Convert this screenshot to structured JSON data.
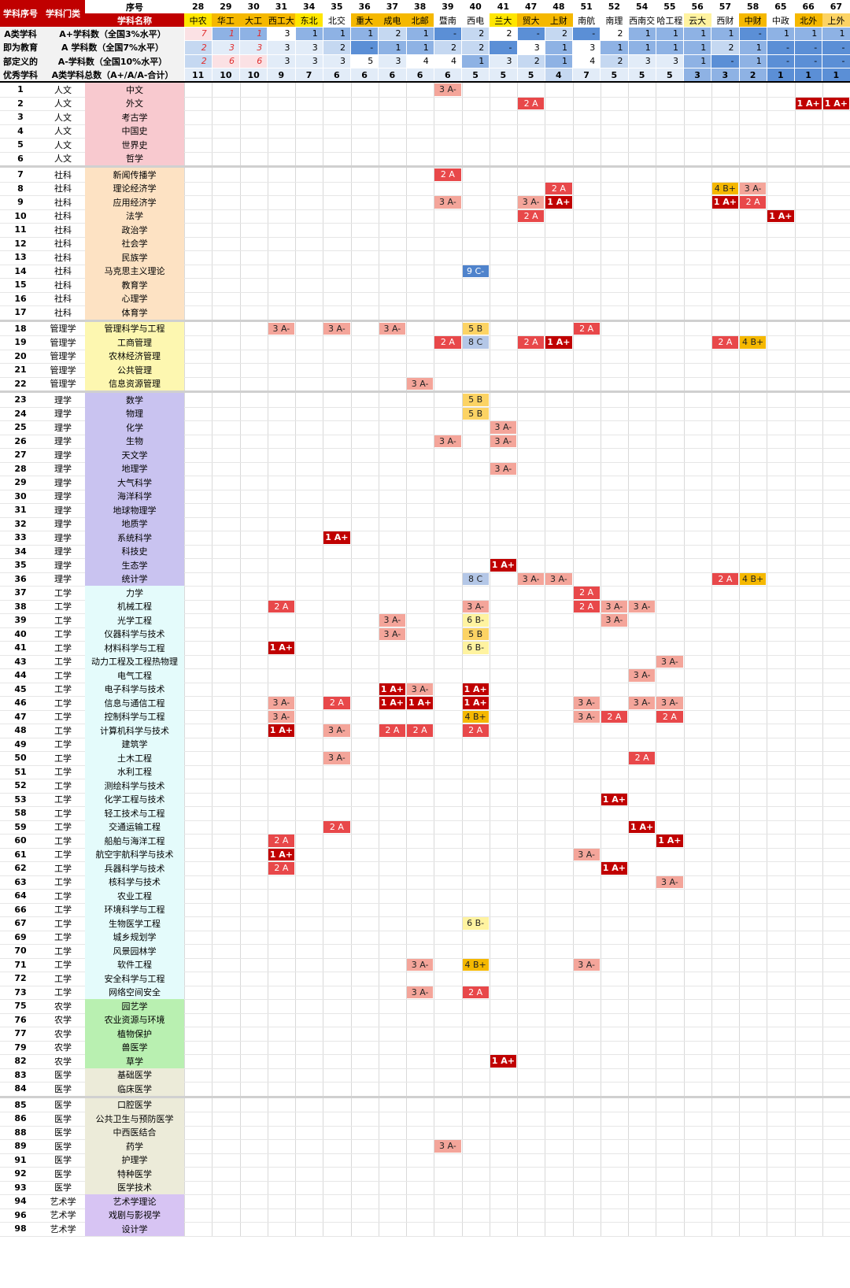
{
  "header": {
    "corner_label_1": "学科序号",
    "corner_label_2": "学科门类",
    "seq_label": "序号",
    "name_label": "学科名称",
    "summary_rows": [
      {
        "left": "A类学科",
        "label": "A+学科数（全国3%水平）"
      },
      {
        "left": "即为教育",
        "label": "A 学科数（全国7%水平）"
      },
      {
        "left": "部定义的",
        "label": "A-学科数（全国10%水平）"
      },
      {
        "left": "优秀学科",
        "label": "A类学科总数（A+/A/A-合计）"
      }
    ]
  },
  "universities": [
    {
      "seq": "28",
      "name": "中农",
      "color": "#ffe600",
      "ap": "7",
      "a": "2",
      "am": "2",
      "total": "11",
      "ap_style": "red",
      "a_style": "red",
      "am_style": "red",
      "ap_bg": "#fbe1e4",
      "a_bg": "#c5d8f1",
      "am_bg": "#c5d8f1",
      "total_bg": "#e2ecf8"
    },
    {
      "seq": "29",
      "name": "华工",
      "color": "#f5b800",
      "ap": "1",
      "a": "3",
      "am": "6",
      "total": "10",
      "ap_style": "red",
      "a_style": "red",
      "am_style": "red",
      "ap_bg": "#8eb2e4",
      "a_bg": "#e2ecf8",
      "am_bg": "#fbe1e4",
      "total_bg": "#e2ecf8"
    },
    {
      "seq": "30",
      "name": "大工",
      "color": "#f5b800",
      "ap": "1",
      "a": "3",
      "am": "6",
      "total": "10",
      "ap_style": "red",
      "a_style": "red",
      "am_style": "red",
      "ap_bg": "#8eb2e4",
      "a_bg": "#e2ecf8",
      "am_bg": "#fbe1e4",
      "total_bg": "#e2ecf8"
    },
    {
      "seq": "31",
      "name": "西工大",
      "color": "#f5b800",
      "ap": "3",
      "a": "3",
      "am": "3",
      "total": "9",
      "ap_style": "",
      "a_style": "",
      "am_style": "",
      "ap_bg": "#ffffff",
      "a_bg": "#e2ecf8",
      "am_bg": "#e2ecf8",
      "total_bg": "#e2ecf8"
    },
    {
      "seq": "34",
      "name": "东北",
      "color": "#ffe600",
      "ap": "1",
      "a": "3",
      "am": "3",
      "total": "7",
      "ap_style": "",
      "a_style": "",
      "am_style": "",
      "ap_bg": "#8eb2e4",
      "a_bg": "#e2ecf8",
      "am_bg": "#e2ecf8",
      "total_bg": "#e2ecf8"
    },
    {
      "seq": "35",
      "name": "北交",
      "color": "#ffffff",
      "ap": "1",
      "a": "2",
      "am": "3",
      "total": "6",
      "ap_style": "",
      "a_style": "",
      "am_style": "",
      "ap_bg": "#8eb2e4",
      "a_bg": "#c5d8f1",
      "am_bg": "#e2ecf8",
      "total_bg": "#e2ecf8"
    },
    {
      "seq": "36",
      "name": "重大",
      "color": "#f5b800",
      "ap": "1",
      "a": "-",
      "am": "5",
      "total": "6",
      "ap_style": "",
      "a_style": "",
      "am_style": "",
      "ap_bg": "#8eb2e4",
      "a_bg": "#5b8fd6",
      "am_bg": "#ffffff",
      "total_bg": "#e2ecf8"
    },
    {
      "seq": "37",
      "name": "成电",
      "color": "#f5b800",
      "ap": "2",
      "a": "1",
      "am": "3",
      "total": "6",
      "ap_style": "",
      "a_style": "",
      "am_style": "",
      "ap_bg": "#c5d8f1",
      "a_bg": "#8eb2e4",
      "am_bg": "#e2ecf8",
      "total_bg": "#e2ecf8"
    },
    {
      "seq": "38",
      "name": "北邮",
      "color": "#f5b800",
      "ap": "1",
      "a": "1",
      "am": "4",
      "total": "6",
      "ap_style": "",
      "a_style": "",
      "am_style": "",
      "ap_bg": "#8eb2e4",
      "a_bg": "#8eb2e4",
      "am_bg": "#ffffff",
      "total_bg": "#e2ecf8"
    },
    {
      "seq": "39",
      "name": "暨南",
      "color": "#ffffff",
      "ap": "-",
      "a": "2",
      "am": "4",
      "total": "6",
      "ap_style": "",
      "a_style": "",
      "am_style": "",
      "ap_bg": "#5b8fd6",
      "a_bg": "#c5d8f1",
      "am_bg": "#ffffff",
      "total_bg": "#e2ecf8"
    },
    {
      "seq": "40",
      "name": "西电",
      "color": "#ffffff",
      "ap": "2",
      "a": "2",
      "am": "1",
      "total": "5",
      "ap_style": "",
      "a_style": "",
      "am_style": "",
      "ap_bg": "#c5d8f1",
      "a_bg": "#c5d8f1",
      "am_bg": "#8eb2e4",
      "total_bg": "#e2ecf8"
    },
    {
      "seq": "41",
      "name": "兰大",
      "color": "#ffe600",
      "ap": "2",
      "a": "-",
      "am": "3",
      "total": "5",
      "ap_style": "",
      "a_style": "",
      "am_style": "",
      "ap_bg": "#ffffff",
      "a_bg": "#5b8fd6",
      "am_bg": "#e2ecf8",
      "total_bg": "#e2ecf8"
    },
    {
      "seq": "47",
      "name": "贸大",
      "color": "#f5b800",
      "ap": "-",
      "a": "3",
      "am": "2",
      "total": "5",
      "ap_style": "",
      "a_style": "",
      "am_style": "",
      "ap_bg": "#5b8fd6",
      "a_bg": "#ffffff",
      "am_bg": "#c5d8f1",
      "total_bg": "#e2ecf8"
    },
    {
      "seq": "48",
      "name": "上财",
      "color": "#f5b800",
      "ap": "2",
      "a": "1",
      "am": "1",
      "total": "4",
      "ap_style": "",
      "a_style": "",
      "am_style": "",
      "ap_bg": "#c5d8f1",
      "a_bg": "#8eb2e4",
      "am_bg": "#8eb2e4",
      "total_bg": "#c5d8f1"
    },
    {
      "seq": "51",
      "name": "南航",
      "color": "#ffffff",
      "ap": "-",
      "a": "3",
      "am": "4",
      "total": "7",
      "ap_style": "",
      "a_style": "",
      "am_style": "",
      "ap_bg": "#5b8fd6",
      "a_bg": "#ffffff",
      "am_bg": "#ffffff",
      "total_bg": "#e2ecf8"
    },
    {
      "seq": "52",
      "name": "南理",
      "color": "#ffffff",
      "ap": "2",
      "a": "1",
      "am": "2",
      "total": "5",
      "ap_style": "",
      "a_style": "",
      "am_style": "",
      "ap_bg": "#ffffff",
      "a_bg": "#8eb2e4",
      "am_bg": "#c5d8f1",
      "total_bg": "#e2ecf8"
    },
    {
      "seq": "54",
      "name": "西南交",
      "color": "#ffffff",
      "ap": "1",
      "a": "1",
      "am": "3",
      "total": "5",
      "ap_style": "",
      "a_style": "",
      "am_style": "",
      "ap_bg": "#8eb2e4",
      "a_bg": "#8eb2e4",
      "am_bg": "#e2ecf8",
      "total_bg": "#e2ecf8"
    },
    {
      "seq": "55",
      "name": "哈工程",
      "color": "#ffffff",
      "ap": "1",
      "a": "1",
      "am": "3",
      "total": "5",
      "ap_style": "",
      "a_style": "",
      "am_style": "",
      "ap_bg": "#8eb2e4",
      "a_bg": "#8eb2e4",
      "am_bg": "#e2ecf8",
      "total_bg": "#e2ecf8"
    },
    {
      "seq": "56",
      "name": "云大",
      "color": "#fff3a0",
      "ap": "1",
      "a": "1",
      "am": "1",
      "total": "3",
      "ap_style": "",
      "a_style": "",
      "am_style": "",
      "ap_bg": "#8eb2e4",
      "a_bg": "#8eb2e4",
      "am_bg": "#8eb2e4",
      "total_bg": "#8eb2e4"
    },
    {
      "seq": "57",
      "name": "西财",
      "color": "#ffffff",
      "ap": "1",
      "a": "2",
      "am": "-",
      "total": "3",
      "ap_style": "",
      "a_style": "",
      "am_style": "",
      "ap_bg": "#8eb2e4",
      "a_bg": "#c5d8f1",
      "am_bg": "#5b8fd6",
      "total_bg": "#8eb2e4"
    },
    {
      "seq": "58",
      "name": "中财",
      "color": "#f5b800",
      "ap": "-",
      "a": "1",
      "am": "1",
      "total": "2",
      "ap_style": "",
      "a_style": "",
      "am_style": "",
      "ap_bg": "#5b8fd6",
      "a_bg": "#8eb2e4",
      "am_bg": "#8eb2e4",
      "total_bg": "#8eb2e4"
    },
    {
      "seq": "65",
      "name": "中政",
      "color": "#ffffff",
      "ap": "1",
      "a": "-",
      "am": "-",
      "total": "1",
      "ap_style": "",
      "a_style": "",
      "am_style": "",
      "ap_bg": "#8eb2e4",
      "a_bg": "#5b8fd6",
      "am_bg": "#5b8fd6",
      "total_bg": "#5b8fd6"
    },
    {
      "seq": "66",
      "name": "北外",
      "color": "#f5b800",
      "ap": "1",
      "a": "-",
      "am": "-",
      "total": "1",
      "ap_style": "",
      "a_style": "",
      "am_style": "",
      "ap_bg": "#8eb2e4",
      "a_bg": "#5b8fd6",
      "am_bg": "#5b8fd6",
      "total_bg": "#5b8fd6"
    },
    {
      "seq": "67",
      "name": "上外",
      "color": "#fcd364",
      "ap": "1",
      "a": "-",
      "am": "-",
      "total": "1",
      "ap_style": "",
      "a_style": "",
      "am_style": "",
      "ap_bg": "#8eb2e4",
      "a_bg": "#5b8fd6",
      "am_bg": "#5b8fd6",
      "total_bg": "#5b8fd6"
    }
  ],
  "category_colors": {
    "人文": "#f8c9cf",
    "社科": "#fde2c3",
    "管理学": "#fdf7b0",
    "理学": "#c9c3f0",
    "工学": "#e4fbfb",
    "农学": "#b9f0b1",
    "医学": "#ecebd9",
    "艺术学": "#d7c4f3"
  },
  "rows": [
    {
      "id": "1",
      "cat": "人文",
      "name": "中文",
      "gap": false,
      "grades": {
        "39": "3 A-"
      }
    },
    {
      "id": "2",
      "cat": "人文",
      "name": "外文",
      "gap": false,
      "grades": {
        "47": "2 A",
        "66": "1 A+",
        "67": "1 A+"
      }
    },
    {
      "id": "3",
      "cat": "人文",
      "name": "考古学",
      "gap": false,
      "grades": {}
    },
    {
      "id": "4",
      "cat": "人文",
      "name": "中国史",
      "gap": false,
      "grades": {}
    },
    {
      "id": "5",
      "cat": "人文",
      "name": "世界史",
      "gap": false,
      "grades": {}
    },
    {
      "id": "6",
      "cat": "人文",
      "name": "哲学",
      "gap": false,
      "grades": {}
    },
    {
      "id": "7",
      "cat": "社科",
      "name": "新闻传播学",
      "gap": true,
      "grades": {
        "39": "2 A"
      }
    },
    {
      "id": "8",
      "cat": "社科",
      "name": "理论经济学",
      "gap": false,
      "grades": {
        "48": "2 A",
        "57": "4 B+",
        "58": "3 A-"
      }
    },
    {
      "id": "9",
      "cat": "社科",
      "name": "应用经济学",
      "gap": false,
      "grades": {
        "39": "3 A-",
        "47": "3 A-",
        "48": "1 A+",
        "57": "1 A+",
        "58": "2 A"
      }
    },
    {
      "id": "10",
      "cat": "社科",
      "name": "法学",
      "gap": false,
      "grades": {
        "47": "2 A",
        "65": "1 A+"
      }
    },
    {
      "id": "11",
      "cat": "社科",
      "name": "政治学",
      "gap": false,
      "grades": {}
    },
    {
      "id": "12",
      "cat": "社科",
      "name": "社会学",
      "gap": false,
      "grades": {}
    },
    {
      "id": "13",
      "cat": "社科",
      "name": "民族学",
      "gap": false,
      "grades": {}
    },
    {
      "id": "14",
      "cat": "社科",
      "name": "马克思主义理论",
      "gap": false,
      "grades": {
        "40": "9 C-"
      }
    },
    {
      "id": "15",
      "cat": "社科",
      "name": "教育学",
      "gap": false,
      "grades": {}
    },
    {
      "id": "16",
      "cat": "社科",
      "name": "心理学",
      "gap": false,
      "grades": {}
    },
    {
      "id": "17",
      "cat": "社科",
      "name": "体育学",
      "gap": false,
      "grades": {}
    },
    {
      "id": "18",
      "cat": "管理学",
      "name": "管理科学与工程",
      "gap": true,
      "grades": {
        "31": "3 A-",
        "35": "3 A-",
        "37": "3 A-",
        "40": "5 B",
        "51": "2 A"
      }
    },
    {
      "id": "19",
      "cat": "管理学",
      "name": "工商管理",
      "gap": false,
      "grades": {
        "39": "2 A",
        "40": "8 C",
        "47": "2 A",
        "48": "1 A+",
        "57": "2 A",
        "58": "4 B+"
      }
    },
    {
      "id": "20",
      "cat": "管理学",
      "name": "农林经济管理",
      "gap": false,
      "grades": {}
    },
    {
      "id": "21",
      "cat": "管理学",
      "name": "公共管理",
      "gap": false,
      "grades": {}
    },
    {
      "id": "22",
      "cat": "管理学",
      "name": "信息资源管理",
      "gap": false,
      "grades": {
        "38": "3 A-"
      }
    },
    {
      "id": "23",
      "cat": "理学",
      "name": "数学",
      "gap": true,
      "grades": {
        "40": "5 B"
      }
    },
    {
      "id": "24",
      "cat": "理学",
      "name": "物理",
      "gap": false,
      "grades": {
        "40": "5 B"
      }
    },
    {
      "id": "25",
      "cat": "理学",
      "name": "化学",
      "gap": false,
      "grades": {
        "41": "3 A-"
      }
    },
    {
      "id": "26",
      "cat": "理学",
      "name": "生物",
      "gap": false,
      "grades": {
        "39": "3 A-",
        "41": "3 A-"
      }
    },
    {
      "id": "27",
      "cat": "理学",
      "name": "天文学",
      "gap": false,
      "grades": {}
    },
    {
      "id": "28",
      "cat": "理学",
      "name": "地理学",
      "gap": false,
      "grades": {
        "41": "3 A-"
      }
    },
    {
      "id": "29",
      "cat": "理学",
      "name": "大气科学",
      "gap": false,
      "grades": {}
    },
    {
      "id": "30",
      "cat": "理学",
      "name": "海洋科学",
      "gap": false,
      "grades": {}
    },
    {
      "id": "31",
      "cat": "理学",
      "name": "地球物理学",
      "gap": false,
      "grades": {}
    },
    {
      "id": "32",
      "cat": "理学",
      "name": "地质学",
      "gap": false,
      "grades": {}
    },
    {
      "id": "33",
      "cat": "理学",
      "name": "系统科学",
      "gap": false,
      "grades": {
        "35": "1 A+"
      }
    },
    {
      "id": "34",
      "cat": "理学",
      "name": "科技史",
      "gap": false,
      "grades": {}
    },
    {
      "id": "35",
      "cat": "理学",
      "name": "生态学",
      "gap": false,
      "grades": {
        "41": "1 A+"
      }
    },
    {
      "id": "36",
      "cat": "理学",
      "name": "统计学",
      "gap": false,
      "grades": {
        "40": "8 C",
        "47": "3 A-",
        "48": "3 A-",
        "57": "2 A",
        "58": "4 B+"
      }
    },
    {
      "id": "37",
      "cat": "工学",
      "name": "力学",
      "gap": false,
      "grades": {
        "51": "2 A"
      }
    },
    {
      "id": "38",
      "cat": "工学",
      "name": "机械工程",
      "gap": false,
      "grades": {
        "31": "2 A",
        "40": "3 A-",
        "51": "2 A",
        "52": "3 A-",
        "54": "3 A-"
      }
    },
    {
      "id": "39",
      "cat": "工学",
      "name": "光学工程",
      "gap": false,
      "grades": {
        "37": "3 A-",
        "40": "6 B-",
        "52": "3 A-"
      }
    },
    {
      "id": "40",
      "cat": "工学",
      "name": "仪器科学与技术",
      "gap": false,
      "grades": {
        "37": "3 A-",
        "40": "5 B"
      }
    },
    {
      "id": "41",
      "cat": "工学",
      "name": "材料科学与工程",
      "gap": false,
      "grades": {
        "31": "1 A+",
        "40": "6 B-"
      }
    },
    {
      "id": "43",
      "cat": "工学",
      "name": "动力工程及工程热物理",
      "gap": false,
      "grades": {
        "55": "3 A-"
      }
    },
    {
      "id": "44",
      "cat": "工学",
      "name": "电气工程",
      "gap": false,
      "grades": {
        "54": "3 A-"
      }
    },
    {
      "id": "45",
      "cat": "工学",
      "name": "电子科学与技术",
      "gap": false,
      "grades": {
        "37": "1 A+",
        "38": "3 A-",
        "40": "1 A+"
      }
    },
    {
      "id": "46",
      "cat": "工学",
      "name": "信息与通信工程",
      "gap": false,
      "grades": {
        "31": "3 A-",
        "35": "2 A",
        "37": "1 A+",
        "38": "1 A+",
        "40": "1 A+",
        "51": "3 A-",
        "54": "3 A-",
        "55": "3 A-"
      }
    },
    {
      "id": "47",
      "cat": "工学",
      "name": "控制科学与工程",
      "gap": false,
      "grades": {
        "31": "3 A-",
        "40": "4 B+",
        "51": "3 A-",
        "52": "2 A",
        "55": "2 A"
      }
    },
    {
      "id": "48",
      "cat": "工学",
      "name": "计算机科学与技术",
      "gap": false,
      "grades": {
        "31": "1 A+",
        "35": "3 A-",
        "37": "2 A",
        "38": "2 A",
        "40": "2 A"
      }
    },
    {
      "id": "49",
      "cat": "工学",
      "name": "建筑学",
      "gap": false,
      "grades": {}
    },
    {
      "id": "50",
      "cat": "工学",
      "name": "土木工程",
      "gap": false,
      "grades": {
        "35": "3 A-",
        "54": "2 A"
      }
    },
    {
      "id": "51",
      "cat": "工学",
      "name": "水利工程",
      "gap": false,
      "grades": {}
    },
    {
      "id": "52",
      "cat": "工学",
      "name": "测绘科学与技术",
      "gap": false,
      "grades": {}
    },
    {
      "id": "53",
      "cat": "工学",
      "name": "化学工程与技术",
      "gap": false,
      "grades": {
        "52": "1 A+"
      }
    },
    {
      "id": "58",
      "cat": "工学",
      "name": "轻工技术与工程",
      "gap": false,
      "grades": {}
    },
    {
      "id": "59",
      "cat": "工学",
      "name": "交通运输工程",
      "gap": false,
      "grades": {
        "35": "2 A",
        "54": "1 A+"
      }
    },
    {
      "id": "60",
      "cat": "工学",
      "name": "船舶与海洋工程",
      "gap": false,
      "grades": {
        "31": "2 A",
        "55": "1 A+"
      }
    },
    {
      "id": "61",
      "cat": "工学",
      "name": "航空宇航科学与技术",
      "gap": false,
      "grades": {
        "31": "1 A+",
        "51": "3 A-"
      }
    },
    {
      "id": "62",
      "cat": "工学",
      "name": "兵器科学与技术",
      "gap": false,
      "grades": {
        "31": "2 A",
        "52": "1 A+"
      }
    },
    {
      "id": "63",
      "cat": "工学",
      "name": "核科学与技术",
      "gap": false,
      "grades": {
        "55": "3 A-"
      }
    },
    {
      "id": "64",
      "cat": "工学",
      "name": "农业工程",
      "gap": false,
      "grades": {}
    },
    {
      "id": "66",
      "cat": "工学",
      "name": "环境科学与工程",
      "gap": false,
      "grades": {}
    },
    {
      "id": "67",
      "cat": "工学",
      "name": "生物医学工程",
      "gap": false,
      "grades": {
        "40": "6 B-"
      }
    },
    {
      "id": "69",
      "cat": "工学",
      "name": "城乡规划学",
      "gap": false,
      "grades": {}
    },
    {
      "id": "70",
      "cat": "工学",
      "name": "风景园林学",
      "gap": false,
      "grades": {}
    },
    {
      "id": "71",
      "cat": "工学",
      "name": "软件工程",
      "gap": false,
      "grades": {
        "38": "3 A-",
        "40": "4 B+",
        "51": "3 A-"
      }
    },
    {
      "id": "72",
      "cat": "工学",
      "name": "安全科学与工程",
      "gap": false,
      "grades": {}
    },
    {
      "id": "73",
      "cat": "工学",
      "name": "网络空间安全",
      "gap": false,
      "grades": {
        "38": "3 A-",
        "40": "2 A"
      }
    },
    {
      "id": "75",
      "cat": "农学",
      "name": "园艺学",
      "gap": false,
      "grades": {}
    },
    {
      "id": "76",
      "cat": "农学",
      "name": "农业资源与环境",
      "gap": false,
      "grades": {}
    },
    {
      "id": "77",
      "cat": "农学",
      "name": "植物保护",
      "gap": false,
      "grades": {}
    },
    {
      "id": "79",
      "cat": "农学",
      "name": "兽医学",
      "gap": false,
      "grades": {}
    },
    {
      "id": "82",
      "cat": "农学",
      "name": "草学",
      "gap": false,
      "grades": {
        "41": "1 A+"
      }
    },
    {
      "id": "83",
      "cat": "医学",
      "name": "基础医学",
      "gap": false,
      "grades": {}
    },
    {
      "id": "84",
      "cat": "医学",
      "name": "临床医学",
      "gap": false,
      "grades": {}
    },
    {
      "id": "85",
      "cat": "医学",
      "name": "口腔医学",
      "gap": true,
      "grades": {}
    },
    {
      "id": "86",
      "cat": "医学",
      "name": "公共卫生与预防医学",
      "gap": false,
      "grades": {}
    },
    {
      "id": "88",
      "cat": "医学",
      "name": "中西医结合",
      "gap": false,
      "grades": {}
    },
    {
      "id": "89",
      "cat": "医学",
      "name": "药学",
      "gap": false,
      "grades": {
        "39": "3 A-"
      }
    },
    {
      "id": "91",
      "cat": "医学",
      "name": "护理学",
      "gap": false,
      "grades": {}
    },
    {
      "id": "92",
      "cat": "医学",
      "name": "特种医学",
      "gap": false,
      "grades": {}
    },
    {
      "id": "93",
      "cat": "医学",
      "name": "医学技术",
      "gap": false,
      "grades": {}
    },
    {
      "id": "94",
      "cat": "艺术学",
      "name": "艺术学理论",
      "gap": false,
      "grades": {}
    },
    {
      "id": "96",
      "cat": "艺术学",
      "name": "戏剧与影视学",
      "gap": false,
      "grades": {}
    },
    {
      "id": "98",
      "cat": "艺术学",
      "name": "设计学",
      "gap": false,
      "grades": {}
    }
  ]
}
